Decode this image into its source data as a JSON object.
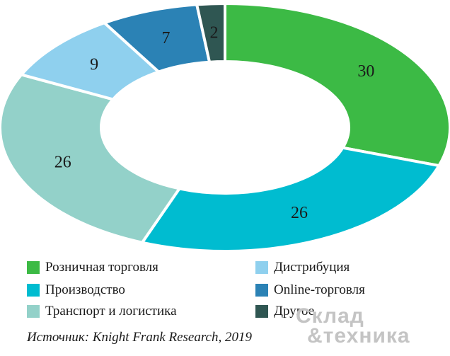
{
  "chart_data": {
    "type": "pie",
    "title": "",
    "donut": true,
    "legend_position": "bottom",
    "categories": [
      "Розничная торговля",
      "Производство",
      "Транспорт и логистика",
      "Дистрибуция",
      "Online-торговля",
      "Другое"
    ],
    "values": [
      30,
      26,
      26,
      9,
      7,
      2
    ],
    "colors": [
      "#3cba45",
      "#00bcd0",
      "#93d1c9",
      "#8fd0ee",
      "#2b82b5",
      "#2f5652"
    ]
  },
  "legend": {
    "items": [
      {
        "label": "Розничная торговля",
        "color": "#3cba45"
      },
      {
        "label": "Дистрибуция",
        "color": "#8fd0ee"
      },
      {
        "label": "Производство",
        "color": "#00bcd0"
      },
      {
        "label": "Online-торговля",
        "color": "#2b82b5"
      },
      {
        "label": "Транспорт и логистика",
        "color": "#93d1c9"
      },
      {
        "label": "Другое",
        "color": "#2f5652"
      }
    ]
  },
  "source": "Источник: Knight Frank Research, 2019",
  "watermark": {
    "line1": "Склад",
    "line2": "&техника"
  }
}
